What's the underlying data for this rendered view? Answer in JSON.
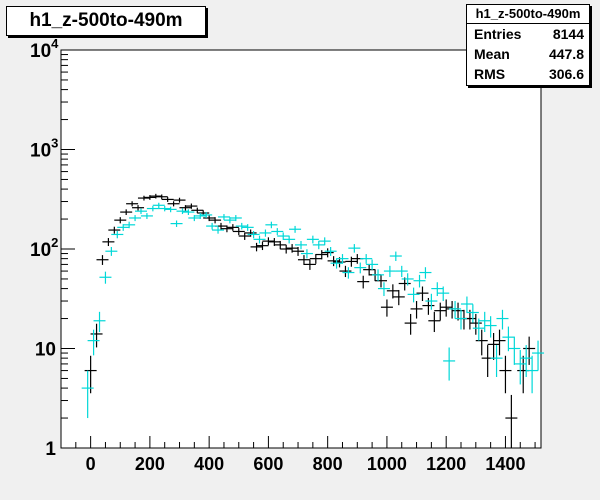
{
  "title": "h1_z-500to-490m",
  "stats": {
    "title": "h1_z-500to-490m",
    "rows": [
      {
        "label": "Entries",
        "value": "8144"
      },
      {
        "label": "Mean",
        "value": "447.8"
      },
      {
        "label": "RMS",
        "value": "306.6"
      }
    ]
  },
  "chart_data": {
    "type": "scatter",
    "title": "h1_z-500to-490m",
    "xlabel": "",
    "ylabel": "",
    "xlim": [
      -100,
      1520
    ],
    "ylim": [
      1,
      10000
    ],
    "yscale": "log",
    "grid": false,
    "x_ticks": [
      0,
      200,
      400,
      600,
      800,
      1000,
      1200,
      1400
    ],
    "x_tick_labels": [
      "0",
      "200",
      "400",
      "600",
      "800",
      "1000",
      "1200",
      "1400"
    ],
    "y_ticks": [
      1,
      10,
      100,
      1000,
      10000
    ],
    "y_tick_labels": [
      {
        "base": "1",
        "exp": ""
      },
      {
        "base": "10",
        "exp": ""
      },
      {
        "base": "10",
        "exp": "2"
      },
      {
        "base": "10",
        "exp": "3"
      },
      {
        "base": "10",
        "exp": "4"
      }
    ],
    "series": [
      {
        "color": "#000000",
        "points": [
          {
            "x": 0,
            "y": 6
          },
          {
            "x": 20,
            "y": 14
          },
          {
            "x": 40,
            "y": 78
          },
          {
            "x": 60,
            "y": 118
          },
          {
            "x": 80,
            "y": 155
          },
          {
            "x": 100,
            "y": 195
          },
          {
            "x": 120,
            "y": 235
          },
          {
            "x": 140,
            "y": 285
          },
          {
            "x": 160,
            "y": 260
          },
          {
            "x": 180,
            "y": 325
          },
          {
            "x": 200,
            "y": 330
          },
          {
            "x": 220,
            "y": 340
          },
          {
            "x": 240,
            "y": 335
          },
          {
            "x": 260,
            "y": 315
          },
          {
            "x": 280,
            "y": 285
          },
          {
            "x": 300,
            "y": 310
          },
          {
            "x": 320,
            "y": 260
          },
          {
            "x": 340,
            "y": 270
          },
          {
            "x": 360,
            "y": 245
          },
          {
            "x": 380,
            "y": 230
          },
          {
            "x": 400,
            "y": 205
          },
          {
            "x": 420,
            "y": 195
          },
          {
            "x": 440,
            "y": 170
          },
          {
            "x": 460,
            "y": 160
          },
          {
            "x": 480,
            "y": 165
          },
          {
            "x": 500,
            "y": 150
          },
          {
            "x": 520,
            "y": 135
          },
          {
            "x": 540,
            "y": 145
          },
          {
            "x": 560,
            "y": 105
          },
          {
            "x": 580,
            "y": 108
          },
          {
            "x": 600,
            "y": 120
          },
          {
            "x": 620,
            "y": 118
          },
          {
            "x": 640,
            "y": 110
          },
          {
            "x": 660,
            "y": 100
          },
          {
            "x": 680,
            "y": 102
          },
          {
            "x": 700,
            "y": 95
          },
          {
            "x": 720,
            "y": 78
          },
          {
            "x": 740,
            "y": 70
          },
          {
            "x": 760,
            "y": 80
          },
          {
            "x": 780,
            "y": 88
          },
          {
            "x": 800,
            "y": 92
          },
          {
            "x": 820,
            "y": 76
          },
          {
            "x": 840,
            "y": 74
          },
          {
            "x": 860,
            "y": 60
          },
          {
            "x": 880,
            "y": 75
          },
          {
            "x": 900,
            "y": 80
          },
          {
            "x": 920,
            "y": 47
          },
          {
            "x": 940,
            "y": 62
          },
          {
            "x": 960,
            "y": 55
          },
          {
            "x": 980,
            "y": 48
          },
          {
            "x": 1000,
            "y": 26
          },
          {
            "x": 1020,
            "y": 38
          },
          {
            "x": 1040,
            "y": 33
          },
          {
            "x": 1060,
            "y": 45
          },
          {
            "x": 1080,
            "y": 18
          },
          {
            "x": 1100,
            "y": 25
          },
          {
            "x": 1120,
            "y": 36
          },
          {
            "x": 1140,
            "y": 27
          },
          {
            "x": 1160,
            "y": 19
          },
          {
            "x": 1180,
            "y": 24
          },
          {
            "x": 1200,
            "y": 26
          },
          {
            "x": 1220,
            "y": 25
          },
          {
            "x": 1240,
            "y": 24
          },
          {
            "x": 1260,
            "y": 20
          },
          {
            "x": 1280,
            "y": 20
          },
          {
            "x": 1300,
            "y": 18
          },
          {
            "x": 1320,
            "y": 12
          },
          {
            "x": 1340,
            "y": 8
          },
          {
            "x": 1360,
            "y": 11
          },
          {
            "x": 1380,
            "y": 12
          },
          {
            "x": 1400,
            "y": 6
          },
          {
            "x": 1420,
            "y": 2
          },
          {
            "x": 1460,
            "y": 6
          },
          {
            "x": 1480,
            "y": 10
          }
        ]
      },
      {
        "color": "#00d8d8",
        "points": [
          {
            "x": -10,
            "y": 4
          },
          {
            "x": 10,
            "y": 12
          },
          {
            "x": 30,
            "y": 19
          },
          {
            "x": 50,
            "y": 52
          },
          {
            "x": 70,
            "y": 95
          },
          {
            "x": 90,
            "y": 140
          },
          {
            "x": 110,
            "y": 165
          },
          {
            "x": 130,
            "y": 175
          },
          {
            "x": 150,
            "y": 205
          },
          {
            "x": 170,
            "y": 240
          },
          {
            "x": 190,
            "y": 215
          },
          {
            "x": 210,
            "y": 255
          },
          {
            "x": 230,
            "y": 275
          },
          {
            "x": 250,
            "y": 255
          },
          {
            "x": 270,
            "y": 250
          },
          {
            "x": 290,
            "y": 180
          },
          {
            "x": 310,
            "y": 240
          },
          {
            "x": 330,
            "y": 235
          },
          {
            "x": 350,
            "y": 205
          },
          {
            "x": 370,
            "y": 215
          },
          {
            "x": 390,
            "y": 220
          },
          {
            "x": 410,
            "y": 170
          },
          {
            "x": 430,
            "y": 155
          },
          {
            "x": 450,
            "y": 210
          },
          {
            "x": 470,
            "y": 195
          },
          {
            "x": 490,
            "y": 205
          },
          {
            "x": 510,
            "y": 170
          },
          {
            "x": 530,
            "y": 165
          },
          {
            "x": 550,
            "y": 140
          },
          {
            "x": 570,
            "y": 125
          },
          {
            "x": 590,
            "y": 145
          },
          {
            "x": 610,
            "y": 175
          },
          {
            "x": 630,
            "y": 150
          },
          {
            "x": 650,
            "y": 135
          },
          {
            "x": 670,
            "y": 125
          },
          {
            "x": 690,
            "y": 158
          },
          {
            "x": 710,
            "y": 110
          },
          {
            "x": 730,
            "y": 90
          },
          {
            "x": 750,
            "y": 125
          },
          {
            "x": 770,
            "y": 110
          },
          {
            "x": 790,
            "y": 120
          },
          {
            "x": 810,
            "y": 95
          },
          {
            "x": 830,
            "y": 72
          },
          {
            "x": 850,
            "y": 80
          },
          {
            "x": 870,
            "y": 58
          },
          {
            "x": 890,
            "y": 102
          },
          {
            "x": 910,
            "y": 65
          },
          {
            "x": 930,
            "y": 80
          },
          {
            "x": 950,
            "y": 70
          },
          {
            "x": 970,
            "y": 55
          },
          {
            "x": 990,
            "y": 40
          },
          {
            "x": 1010,
            "y": 60
          },
          {
            "x": 1030,
            "y": 85
          },
          {
            "x": 1050,
            "y": 60
          },
          {
            "x": 1070,
            "y": 50
          },
          {
            "x": 1090,
            "y": 35
          },
          {
            "x": 1110,
            "y": 48
          },
          {
            "x": 1130,
            "y": 58
          },
          {
            "x": 1150,
            "y": 30
          },
          {
            "x": 1170,
            "y": 40
          },
          {
            "x": 1190,
            "y": 36
          },
          {
            "x": 1210,
            "y": 7.5
          },
          {
            "x": 1230,
            "y": 25
          },
          {
            "x": 1250,
            "y": 20
          },
          {
            "x": 1270,
            "y": 28
          },
          {
            "x": 1290,
            "y": 23
          },
          {
            "x": 1310,
            "y": 16
          },
          {
            "x": 1330,
            "y": 19
          },
          {
            "x": 1350,
            "y": 17
          },
          {
            "x": 1370,
            "y": 8
          },
          {
            "x": 1390,
            "y": 20
          },
          {
            "x": 1410,
            "y": 13
          },
          {
            "x": 1430,
            "y": 10
          },
          {
            "x": 1450,
            "y": 7
          },
          {
            "x": 1470,
            "y": 8
          },
          {
            "x": 1490,
            "y": 6
          },
          {
            "x": 1510,
            "y": 9
          }
        ]
      }
    ]
  }
}
